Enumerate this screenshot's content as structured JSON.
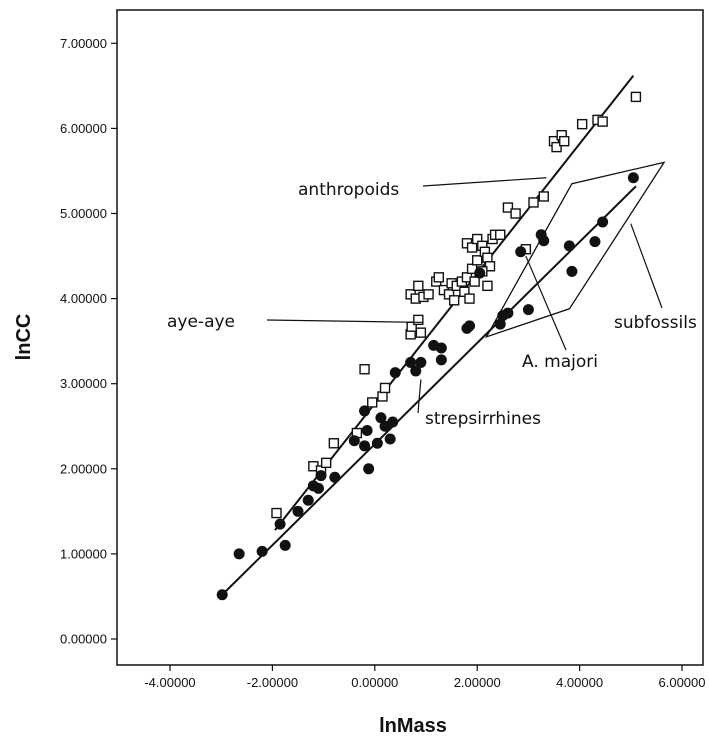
{
  "chart_data": {
    "type": "scatter",
    "xlabel": "lnMass",
    "ylabel": "lnCC",
    "xlim": [
      -4.2,
      6.5
    ],
    "ylim": [
      -0.2,
      7.4
    ],
    "x_ticks": [
      {
        "value": -4,
        "label": "-4.00000"
      },
      {
        "value": -2,
        "label": "-2.00000"
      },
      {
        "value": 0,
        "label": "0.00000"
      },
      {
        "value": 2,
        "label": "2.00000"
      },
      {
        "value": 4,
        "label": "4.00000"
      },
      {
        "value": 6,
        "label": "6.00000"
      }
    ],
    "y_ticks": [
      {
        "value": 0,
        "label": "0.00000"
      },
      {
        "value": 1,
        "label": "1.00000"
      },
      {
        "value": 2,
        "label": "2.00000"
      },
      {
        "value": 3,
        "label": "3.00000"
      },
      {
        "value": 4,
        "label": "4.00000"
      },
      {
        "value": 5,
        "label": "5.00000"
      },
      {
        "value": 6,
        "label": "6.00000"
      },
      {
        "value": 7,
        "label": "7.00000"
      }
    ],
    "grid": false,
    "series": [
      {
        "marker": "open-square",
        "points": [
          [
            -1.92,
            1.48
          ],
          [
            -1.2,
            2.03
          ],
          [
            -1.05,
            1.98
          ],
          [
            -0.95,
            2.07
          ],
          [
            -0.8,
            2.3
          ],
          [
            -0.35,
            2.42
          ],
          [
            -0.05,
            2.78
          ],
          [
            0.15,
            2.85
          ],
          [
            0.2,
            2.95
          ],
          [
            -0.2,
            3.17
          ],
          [
            0.7,
            3.58
          ],
          [
            0.72,
            3.67
          ],
          [
            0.9,
            3.6
          ],
          [
            0.85,
            3.75
          ],
          [
            0.7,
            4.05
          ],
          [
            0.8,
            4.0
          ],
          [
            0.85,
            4.15
          ],
          [
            0.95,
            4.02
          ],
          [
            1.05,
            4.05
          ],
          [
            1.2,
            4.2
          ],
          [
            1.25,
            4.25
          ],
          [
            1.35,
            4.1
          ],
          [
            1.45,
            4.05
          ],
          [
            1.5,
            4.18
          ],
          [
            1.55,
            3.98
          ],
          [
            1.6,
            4.15
          ],
          [
            1.7,
            4.2
          ],
          [
            1.75,
            4.08
          ],
          [
            1.8,
            4.25
          ],
          [
            1.85,
            4.0
          ],
          [
            1.9,
            4.35
          ],
          [
            1.95,
            4.2
          ],
          [
            2.0,
            4.45
          ],
          [
            1.8,
            4.65
          ],
          [
            1.9,
            4.6
          ],
          [
            2.0,
            4.7
          ],
          [
            2.1,
            4.62
          ],
          [
            2.15,
            4.55
          ],
          [
            2.2,
            4.48
          ],
          [
            2.25,
            4.38
          ],
          [
            2.3,
            4.7
          ],
          [
            2.35,
            4.75
          ],
          [
            2.45,
            4.75
          ],
          [
            2.1,
            4.32
          ],
          [
            2.2,
            4.15
          ],
          [
            2.6,
            5.07
          ],
          [
            2.75,
            5.0
          ],
          [
            2.95,
            4.58
          ],
          [
            3.1,
            5.13
          ],
          [
            3.3,
            5.2
          ],
          [
            3.5,
            5.85
          ],
          [
            3.55,
            5.78
          ],
          [
            3.65,
            5.92
          ],
          [
            3.7,
            5.85
          ],
          [
            4.05,
            6.05
          ],
          [
            4.35,
            6.1
          ],
          [
            4.45,
            6.08
          ],
          [
            5.1,
            6.37
          ]
        ]
      },
      {
        "marker": "filled-circle",
        "points": [
          [
            -2.98,
            0.52
          ],
          [
            -2.65,
            1.0
          ],
          [
            -2.2,
            1.03
          ],
          [
            -1.85,
            1.35
          ],
          [
            -1.75,
            1.1
          ],
          [
            -1.5,
            1.5
          ],
          [
            -1.3,
            1.63
          ],
          [
            -1.2,
            1.8
          ],
          [
            -1.1,
            1.77
          ],
          [
            -1.05,
            1.92
          ],
          [
            -0.78,
            1.9
          ],
          [
            -0.4,
            2.33
          ],
          [
            -0.2,
            2.27
          ],
          [
            -0.15,
            2.45
          ],
          [
            -0.12,
            2.0
          ],
          [
            0.05,
            2.3
          ],
          [
            0.12,
            2.6
          ],
          [
            0.2,
            2.5
          ],
          [
            0.3,
            2.35
          ],
          [
            0.35,
            2.55
          ],
          [
            -0.2,
            2.68
          ],
          [
            0.4,
            3.13
          ],
          [
            0.7,
            3.25
          ],
          [
            0.8,
            3.15
          ],
          [
            0.9,
            3.25
          ],
          [
            1.15,
            3.45
          ],
          [
            1.3,
            3.28
          ],
          [
            1.3,
            3.42
          ],
          [
            1.8,
            3.65
          ],
          [
            1.85,
            3.68
          ],
          [
            2.05,
            4.3
          ],
          [
            2.45,
            3.7
          ],
          [
            2.5,
            3.8
          ],
          [
            2.6,
            3.83
          ],
          [
            3.0,
            3.87
          ],
          [
            3.25,
            4.75
          ],
          [
            3.3,
            4.68
          ],
          [
            3.8,
            4.62
          ],
          [
            3.85,
            4.32
          ],
          [
            4.3,
            4.67
          ],
          [
            4.45,
            4.9
          ],
          [
            5.05,
            5.42
          ],
          [
            2.85,
            4.55
          ]
        ]
      }
    ],
    "fit_lines": [
      {
        "name": "anthropoids",
        "from": [
          -1.95,
          1.28
        ],
        "to": [
          5.05,
          6.62
        ]
      },
      {
        "name": "strepsirrhines",
        "from": [
          -2.98,
          0.52
        ],
        "to": [
          5.1,
          5.32
        ]
      }
    ],
    "subfossil_polygon": [
      [
        2.18,
        3.55
      ],
      [
        3.85,
        5.35
      ],
      [
        5.65,
        5.6
      ],
      [
        3.8,
        3.88
      ]
    ],
    "annotations": [
      {
        "text": "anthropoids",
        "target": [
          3.35,
          5.42
        ],
        "anchor": "end-left"
      },
      {
        "text": "aye-aye",
        "target": [
          0.95,
          3.72
        ],
        "anchor": "end-left"
      },
      {
        "text": "strepsirrhines",
        "target": [
          0.9,
          3.05
        ],
        "anchor": "start-right"
      },
      {
        "text": "A. majori",
        "target": [
          2.95,
          4.5
        ],
        "anchor": "below"
      },
      {
        "text": "subfossils",
        "target": [
          5.0,
          4.88
        ],
        "anchor": "below"
      }
    ]
  }
}
